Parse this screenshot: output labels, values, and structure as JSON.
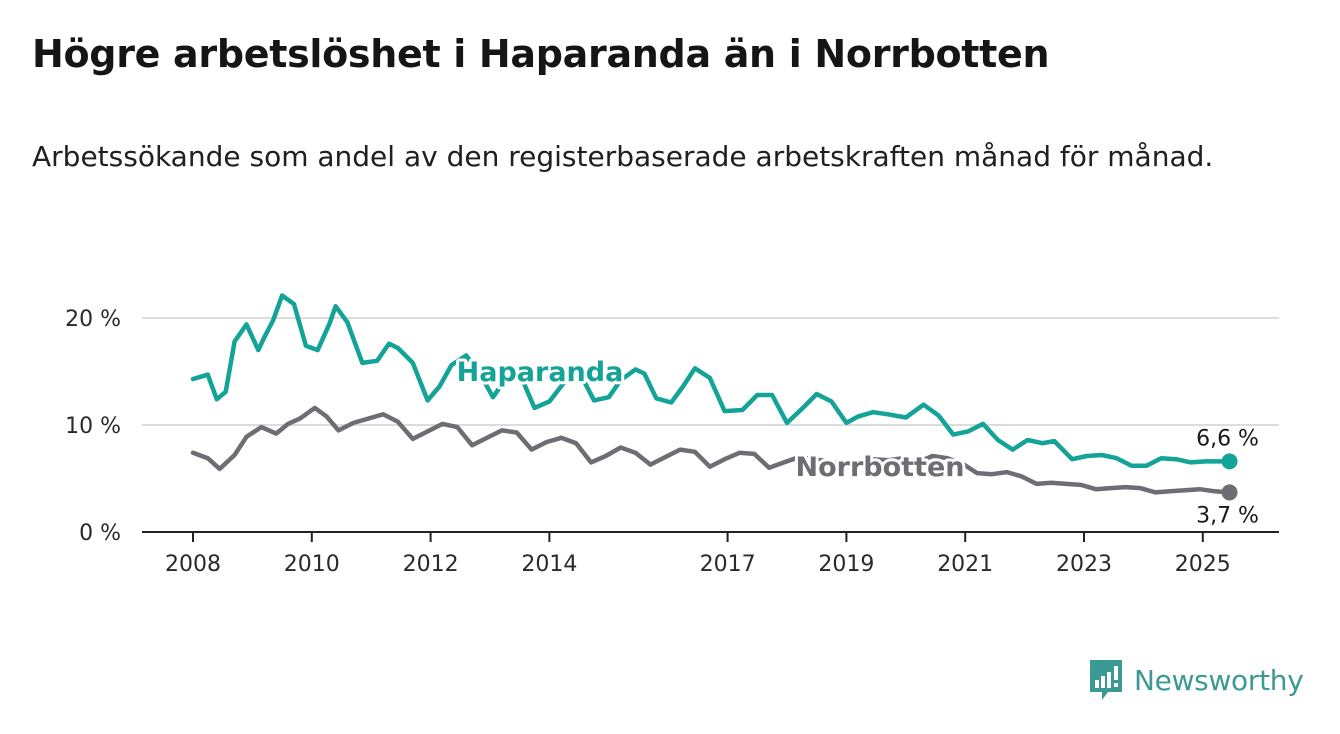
{
  "title": "Högre arbetslöshet i Haparanda än i Norrbotten",
  "subtitle": "Arbetssökande som andel av den registerbaserade arbetskraften månad för månad.",
  "colors": {
    "haparanda": "#14a397",
    "norrbotten": "#6f6d73",
    "grid": "#dcdcdc",
    "axis": "#222222"
  },
  "brand": {
    "name": "Newsworthy",
    "logo_icon": "bar-chart-exclamation-icon",
    "color": "#3c9a94"
  },
  "chart_data": {
    "type": "line",
    "title": "Högre arbetslöshet i Haparanda än i Norrbotten",
    "xlabel": "",
    "ylabel": "",
    "xlim": [
      2008,
      2025.5
    ],
    "ylim": [
      0,
      22.5
    ],
    "x_ticks": [
      2008,
      2010,
      2012,
      2014,
      2017,
      2019,
      2021,
      2023,
      2025
    ],
    "y_ticks": [
      0,
      10,
      20
    ],
    "y_tick_labels": [
      "0 %",
      "10 %",
      "20 %"
    ],
    "grid": true,
    "series": [
      {
        "name": "Haparanda",
        "color": "#14a397",
        "end_label": "6,6 %",
        "x": [
          2008,
          2008.25,
          2008.4,
          2008.55,
          2008.7,
          2008.9,
          2009.1,
          2009.2,
          2009.35,
          2009.5,
          2009.7,
          2009.9,
          2010.1,
          2010.3,
          2010.4,
          2010.6,
          2010.85,
          2011.1,
          2011.3,
          2011.45,
          2011.7,
          2011.95,
          2012.15,
          2012.35,
          2012.6,
          2012.85,
          2013.05,
          2013.25,
          2013.5,
          2013.75,
          2014.0,
          2014.25,
          2014.5,
          2014.75,
          2015.0,
          2015.2,
          2015.45,
          2015.6,
          2015.8,
          2016.05,
          2016.25,
          2016.45,
          2016.7,
          2016.95,
          2017.25,
          2017.5,
          2017.75,
          2018.0,
          2018.25,
          2018.5,
          2018.75,
          2019.0,
          2019.2,
          2019.45,
          2019.7,
          2020.0,
          2020.3,
          2020.55,
          2020.8,
          2021.05,
          2021.3,
          2021.55,
          2021.8,
          2022.05,
          2022.3,
          2022.5,
          2022.8,
          2023.05,
          2023.3,
          2023.55,
          2023.8,
          2024.05,
          2024.3,
          2024.55,
          2024.8,
          2025.05,
          2025.3,
          2025.45
        ],
        "values": [
          14.3,
          14.7,
          12.4,
          13.1,
          17.8,
          19.4,
          17.0,
          18.2,
          19.8,
          22.1,
          21.3,
          17.4,
          17.0,
          19.5,
          21.1,
          19.6,
          15.8,
          16.0,
          17.6,
          17.2,
          15.8,
          12.3,
          13.6,
          15.6,
          16.5,
          14.6,
          12.6,
          14.2,
          14.8,
          11.6,
          12.2,
          14.0,
          15.0,
          12.3,
          12.6,
          14.2,
          15.2,
          14.8,
          12.5,
          12.1,
          13.6,
          15.3,
          14.4,
          11.3,
          11.4,
          12.8,
          12.8,
          10.2,
          11.5,
          12.9,
          12.2,
          10.2,
          10.8,
          11.2,
          11.0,
          10.7,
          11.9,
          10.9,
          9.1,
          9.4,
          10.1,
          8.6,
          7.7,
          8.6,
          8.3,
          8.5,
          6.8,
          7.1,
          7.2,
          6.9,
          6.2,
          6.2,
          6.9,
          6.8,
          6.5,
          6.6,
          6.6,
          6.6
        ]
      },
      {
        "name": "Norrbotten",
        "color": "#6f6d73",
        "end_label": "3,7 %",
        "x": [
          2008,
          2008.25,
          2008.45,
          2008.7,
          2008.9,
          2009.15,
          2009.4,
          2009.6,
          2009.8,
          2010.05,
          2010.25,
          2010.45,
          2010.7,
          2010.95,
          2011.2,
          2011.45,
          2011.7,
          2011.95,
          2012.2,
          2012.45,
          2012.7,
          2012.95,
          2013.2,
          2013.45,
          2013.7,
          2013.95,
          2014.2,
          2014.45,
          2014.7,
          2014.95,
          2015.2,
          2015.45,
          2015.7,
          2015.95,
          2016.2,
          2016.45,
          2016.7,
          2016.95,
          2017.2,
          2017.45,
          2017.7,
          2017.95,
          2018.2,
          2018.45,
          2018.7,
          2018.95,
          2019.2,
          2019.45,
          2019.7,
          2019.95,
          2020.2,
          2020.45,
          2020.7,
          2020.95,
          2021.2,
          2021.45,
          2021.7,
          2021.95,
          2022.2,
          2022.45,
          2022.7,
          2022.95,
          2023.2,
          2023.45,
          2023.7,
          2023.95,
          2024.2,
          2024.45,
          2024.7,
          2024.95,
          2025.2,
          2025.45
        ],
        "values": [
          7.4,
          6.9,
          5.9,
          7.2,
          8.9,
          9.8,
          9.2,
          10.1,
          10.6,
          11.6,
          10.8,
          9.5,
          10.2,
          10.6,
          11.0,
          10.3,
          8.7,
          9.4,
          10.1,
          9.8,
          8.1,
          8.8,
          9.5,
          9.3,
          7.7,
          8.4,
          8.8,
          8.3,
          6.5,
          7.1,
          7.9,
          7.4,
          6.3,
          7.0,
          7.7,
          7.5,
          6.1,
          6.8,
          7.4,
          7.3,
          6.0,
          6.5,
          7.0,
          6.8,
          6.6,
          6.3,
          6.5,
          6.8,
          6.7,
          6.9,
          6.5,
          7.1,
          6.9,
          6.4,
          5.5,
          5.4,
          5.6,
          5.2,
          4.5,
          4.6,
          4.5,
          4.4,
          4.0,
          4.1,
          4.2,
          4.1,
          3.7,
          3.8,
          3.9,
          4.0,
          3.8,
          3.7
        ]
      }
    ]
  }
}
